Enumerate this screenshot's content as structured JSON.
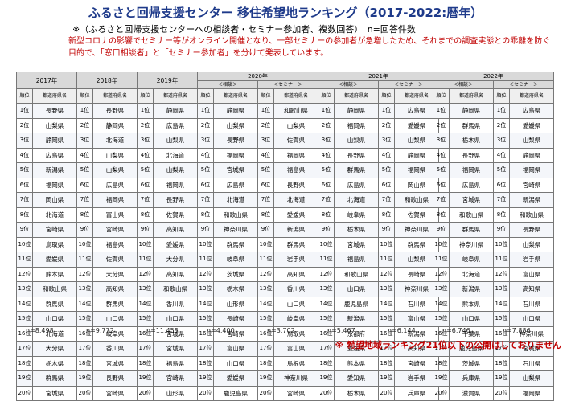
{
  "title": "ふるさと回帰支援センター 移住希望地ランキング（2017-2022:暦年）",
  "subtitle": "※（ふるさと回帰支援センターへの相談者・セミナー参加者、複数回答）　n=回答件数",
  "notice": "新型コロナの影響でセミナー等がオンライン開催となり、一部セミナーの参加者が急増したため、それまでの調査実態との乖離を防ぐ目的で、「窓口相談者」と「セミナー参加者」を分けて発表しています。",
  "footnote": "※ 希望地域ランキング21位以下の公開はしておりません",
  "col_rank": "順位",
  "col_pref": "都道府県名",
  "ranks": [
    "1位",
    "2位",
    "3位",
    "4位",
    "5位",
    "6位",
    "7位",
    "8位",
    "9位",
    "10位",
    "11位",
    "12位",
    "13位",
    "14位",
    "15位",
    "16位",
    "17位",
    "18位",
    "19位",
    "20位"
  ],
  "left_table": {
    "years": [
      {
        "label": "2017年",
        "sub": "",
        "n": "n=8,498",
        "prefs": [
          "長野県",
          "山梨県",
          "静岡県",
          "広島県",
          "新潟県",
          "福岡県",
          "岡山県",
          "北海道",
          "宮崎県",
          "鳥取県",
          "愛媛県",
          "熊本県",
          "和歌山県",
          "群馬県",
          "山口県",
          "北海道",
          "大分県",
          "栃木県",
          "群馬県",
          "宮城県"
        ]
      },
      {
        "label": "2018年",
        "sub": "",
        "n": "n=9,772",
        "prefs": [
          "長野県",
          "静岡県",
          "北海道",
          "山梨県",
          "山梨県",
          "広島県",
          "福岡県",
          "富山県",
          "宮崎県",
          "福島県",
          "佐賀県",
          "大分県",
          "高知県",
          "群馬県",
          "山口県",
          "岐阜県",
          "香川県",
          "宮城県",
          "長野県",
          "宮崎県"
        ]
      },
      {
        "label": "2019年",
        "sub": "",
        "n": "n=11,458",
        "prefs": [
          "静岡県",
          "広島県",
          "山梨県",
          "北海道",
          "山梨県",
          "福岡県",
          "長野県",
          "佐賀県",
          "高知県",
          "愛媛県",
          "大分県",
          "高知県",
          "和歌山県",
          "香川県",
          "山口県",
          "宮城県",
          "宮城県",
          "福島県",
          "宮崎県",
          "山形県"
        ]
      }
    ],
    "year2020": {
      "label": "2020年",
      "consult": {
        "sub": "＜相談＞",
        "n": "n=4,400",
        "prefs": [
          "静岡県",
          "山梨県",
          "長野県",
          "福岡県",
          "宮城県",
          "広島県",
          "北海道",
          "和歌山県",
          "神奈川県",
          "群馬県",
          "岐阜県",
          "茨城県",
          "栃木県",
          "山形県",
          "長崎県",
          "宮崎県",
          "富山県",
          "山口県",
          "愛媛県",
          "鹿児島県"
        ]
      },
      "seminar": {
        "sub": "＜セミナー＞",
        "n": "n=3,702",
        "prefs": [
          "和歌山県",
          "山梨県",
          "佐賀県",
          "福岡県",
          "福島県",
          "長野県",
          "北海道",
          "愛媛県",
          "新潟県",
          "群馬県",
          "岩手県",
          "高知県",
          "香川県",
          "山口県",
          "岐阜県",
          "鳥取県",
          "富山県",
          "島根県",
          "神奈川県",
          "宮崎県"
        ]
      }
    },
    "year2021": {
      "label": "2021年",
      "consult": {
        "sub": "＜相談＞",
        "n": "n=5,467",
        "prefs": [
          "静岡県",
          "福岡県",
          "山梨県",
          "長野県",
          "群馬県",
          "広島県",
          "北海道",
          "岐阜県",
          "栃木県",
          "宮城県",
          "福島県",
          "和歌山県",
          "山口県",
          "鹿児島県",
          "新潟県",
          "京都府",
          "愛媛県",
          "熊本県",
          "愛知県",
          "栃木県"
        ]
      },
      "seminar": {
        "sub": "＜セミナー＞",
        "n": "n=6,144",
        "prefs": [
          "広島県",
          "愛媛県",
          "山梨県",
          "静岡県",
          "福岡県",
          "岡山県",
          "和歌山県",
          "佐賀県",
          "神奈川県",
          "群馬県",
          "山梨県",
          "長崎県",
          "神奈川県",
          "石川県",
          "富山県",
          "新潟県",
          "高知県",
          "宮崎県",
          "岩手県",
          "兵庫県"
        ]
      }
    }
  },
  "right_table": {
    "label": "2022年",
    "consult": {
      "sub": "＜相談＞",
      "n": "n=6,746",
      "prefs": [
        "静岡県",
        "群馬県",
        "栃木県",
        "長野県",
        "福岡県",
        "広島県",
        "宮城県",
        "和歌山県",
        "群馬県",
        "神奈川県",
        "岐阜県",
        "北海道",
        "新潟県",
        "熊本県",
        "山口県",
        "千葉県",
        "鹿児島県",
        "茨城県",
        "兵庫県",
        "滋賀県"
      ]
    },
    "seminar": {
      "sub": "＜セミナー＞",
      "n": "n=7,886",
      "prefs": [
        "広島県",
        "愛媛県",
        "山梨県",
        "静岡県",
        "福岡県",
        "宮崎県",
        "新潟県",
        "和歌山県",
        "長野県",
        "山梨県",
        "岩手県",
        "富山県",
        "高知県",
        "石川県",
        "山口県",
        "神奈川県",
        "宮城県",
        "石川県",
        "山梨県",
        "福岡県"
      ]
    }
  }
}
